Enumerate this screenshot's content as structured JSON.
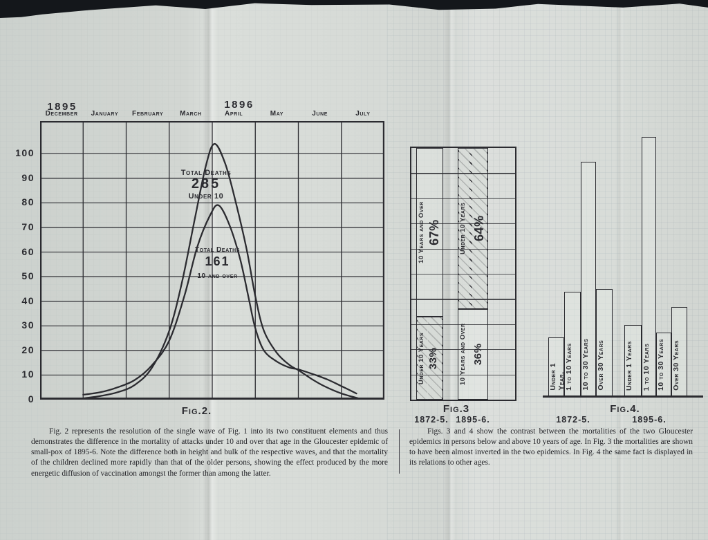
{
  "palette": {
    "paper": "#d6dad6",
    "ink": "#2b2b30"
  },
  "fig2": {
    "label": "Fig.2.",
    "year_left": "1895",
    "year_right": "1896",
    "months": [
      "December",
      "January",
      "February",
      "March",
      "April",
      "May",
      "June",
      "July"
    ],
    "y_ticks": [
      "100",
      "90",
      "80",
      "70",
      "60",
      "50",
      "40",
      "30",
      "20",
      "10",
      "0"
    ],
    "curve1": {
      "title": "Total Deaths",
      "value": "285",
      "subtitle": "Under 10"
    },
    "curve2": {
      "title": "Total Deaths",
      "value": "161",
      "subtitle": "10 and over"
    },
    "caption": "Fig. 2 represents the resolution of the single wave of Fig. 1 into its two constituent elements and thus demonstrates the difference in the mortality of attacks under 10 and over that age in the Gloucester epidemic of small-pox of 1895-6.  Note the difference both in height and bulk of the respective waves, and that the mortality of the children declined more rapidly than that of the older persons, showing the effect produced by the more energetic diffusion of vaccination amongst the former than among the latter."
  },
  "fig3": {
    "label": "Fig.3",
    "group_labels": [
      "1872-5.",
      "1895-6."
    ]
  },
  "fig4": {
    "label": "Fig.4.",
    "group_labels": [
      "1872-5.",
      "1895-6."
    ]
  },
  "caption_right": "Figs. 3 and 4 show the contrast between the mortalities of the two Gloucester epidemics in persons below and above 10 years of age.  In Fig. 3 the mortalities are shown to have been almost inverted in the two epidemics.  In Fig. 4 the same fact is displayed in its relations to other ages.",
  "chart_data": [
    {
      "type": "line",
      "fig": "Fig.2.",
      "x_unit": "months from 1 December 1895",
      "x_months": [
        "December (1895)",
        "January",
        "February",
        "March",
        "April (1896)",
        "May",
        "June",
        "July"
      ],
      "ylim": [
        0,
        100
      ],
      "y_ticks": [
        0,
        10,
        20,
        30,
        40,
        50,
        60,
        70,
        80,
        90,
        100
      ],
      "grid": true,
      "series": [
        {
          "name": "Under 10 (Total Deaths 285)",
          "points": [
            [
              1.0,
              0.5
            ],
            [
              1.4,
              1.5
            ],
            [
              1.8,
              3
            ],
            [
              2.2,
              6
            ],
            [
              2.6,
              13
            ],
            [
              3.0,
              28
            ],
            [
              3.3,
              48
            ],
            [
              3.6,
              74
            ],
            [
              3.85,
              95
            ],
            [
              4.05,
              104
            ],
            [
              4.3,
              96
            ],
            [
              4.55,
              80
            ],
            [
              4.8,
              61
            ],
            [
              5.0,
              42
            ],
            [
              5.2,
              28
            ],
            [
              5.5,
              19
            ],
            [
              5.8,
              14
            ],
            [
              6.0,
              12
            ],
            [
              6.3,
              8.5
            ],
            [
              6.6,
              5.5
            ],
            [
              7.0,
              2.5
            ],
            [
              7.4,
              0.5
            ]
          ]
        },
        {
          "name": "10 and over (Total Deaths 161)",
          "points": [
            [
              1.0,
              2
            ],
            [
              1.4,
              3
            ],
            [
              1.8,
              5
            ],
            [
              2.2,
              8
            ],
            [
              2.6,
              14
            ],
            [
              3.0,
              24
            ],
            [
              3.35,
              42
            ],
            [
              3.65,
              62
            ],
            [
              3.95,
              75
            ],
            [
              4.15,
              79
            ],
            [
              4.4,
              71
            ],
            [
              4.65,
              57
            ],
            [
              4.85,
              41
            ],
            [
              5.0,
              29
            ],
            [
              5.2,
              20
            ],
            [
              5.5,
              15.5
            ],
            [
              5.8,
              13
            ],
            [
              6.0,
              12.3
            ],
            [
              6.4,
              10
            ],
            [
              6.7,
              8
            ],
            [
              7.0,
              5.5
            ],
            [
              7.35,
              2.5
            ]
          ]
        }
      ]
    },
    {
      "type": "bar",
      "fig": "Fig.3",
      "subtype": "stacked-percentage-columns",
      "categories": [
        "1872-5",
        "1895-6"
      ],
      "ylim_pct": [
        0,
        100
      ],
      "segments": [
        {
          "category": "1872-5",
          "label": "10 Years and Over",
          "pct": 67,
          "hatched": false,
          "order": "top"
        },
        {
          "category": "1872-5",
          "label": "Under 10 Years",
          "pct": 33,
          "hatched": true,
          "order": "bottom"
        },
        {
          "category": "1895-6",
          "label": "Under 10 Years",
          "pct": 64,
          "hatched": true,
          "order": "top"
        },
        {
          "category": "1895-6",
          "label": "10 Years and Over",
          "pct": 36,
          "hatched": false,
          "order": "bottom"
        }
      ]
    },
    {
      "type": "bar",
      "fig": "Fig.4.",
      "note": "no numeric labels printed; values estimated from bar heights on the Fig.2/Fig.3 scale",
      "groups": [
        {
          "category": "1872-5",
          "bars": [
            {
              "label": "Under 1 Year.",
              "value": 23
            },
            {
              "label": "1 to 10 Years",
              "value": 41
            },
            {
              "label": "10 to 30 Years",
              "value": 92
            },
            {
              "label": "Over 30 Years",
              "value": 42
            }
          ]
        },
        {
          "category": "1895-6",
          "bars": [
            {
              "label": "Under 1 Years",
              "value": 28
            },
            {
              "label": "1 to 10 Years",
              "value": 102
            },
            {
              "label": "10 to 30 Years",
              "value": 25
            },
            {
              "label": "Over 30 Years",
              "value": 35
            }
          ]
        }
      ]
    }
  ]
}
